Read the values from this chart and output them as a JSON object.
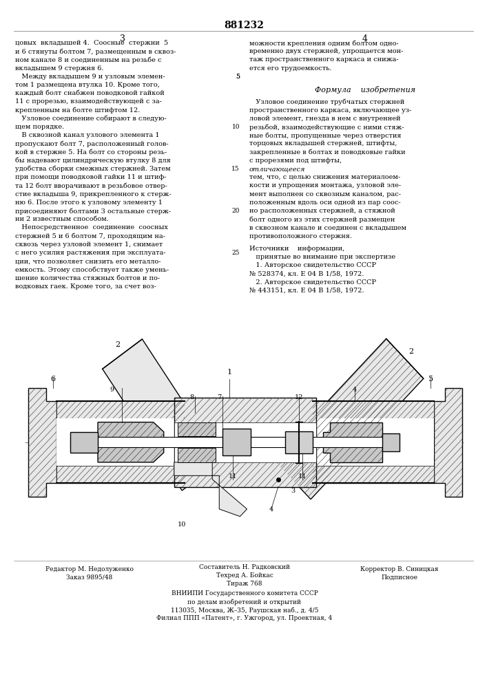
{
  "patent_number": "881232",
  "background_color": "#ffffff",
  "text_color": "#000000",
  "col1_header": "3",
  "col2_header": "4",
  "col1_lines": [
    "цовых  вкладышей 4.  Соосные  стержни  5",
    "и 6 стянуты болтом 7, размещенным в сквоз-",
    "ном канале 8 и соединенным на резьбе с",
    "вкладышем 9 стержня 6.",
    "   Между вкладышем 9 и узловым элемен-",
    "том 1 размещена втулка 10. Кроме того,",
    "каждый болт снабжен поводковой гайкой",
    "11 с прорезью, взаимодействующей с за-",
    "крепленным на болте штифтом 12.",
    "   Узловое соединение собирают в следую-",
    "щем порядке.",
    "   В сквозной канал узлового элемента 1",
    "пропускают болт 7, расположенный голов-",
    "кой в стержне 5. На болт со стороны резь-",
    "бы надевают цилиндрическую втулку 8 для",
    "удобства сборки смежных стержней. Затем",
    "при помощи поводковой гайки 11 и штиф-",
    "та 12 болт вворачивают в резьбовое отвер-",
    "стие вкладыша 9, прикрепленного к стерж-",
    "ню 6. После этого к узловому элементу 1",
    "присоединяют болтами 3 остальные стерж-",
    "ни 2 известным способом.",
    "   Непосредственное  соединение  соосных",
    "стержней 5 и 6 болтом 7, проходящим на-",
    "сквозь через узловой элемент 1, снимает",
    "с него усилия растяжения при эксплуата-",
    "ции, что позволяет снизить его металло-",
    "емкость. Этому способствует также умень-",
    "шение количества стяжных болтов и по-",
    "водковых гаек. Кроме того, за счет воз-"
  ],
  "col2_lines_normal": [
    "можности крепления одним болтом одно-",
    "временно двух стержней, упрощается мон-",
    "таж пространственного каркаса и снижа-",
    "ется его трудоемкость."
  ],
  "col2_formula_title": "Формула    изобретения",
  "col2_formula_lines": [
    "   Узловое соединение трубчатых стержней",
    "пространственного каркаса, включающее уз-",
    "ловой элемент, гнезда в нем с внутренней",
    "резьбой, взаимодействующие с ними стяж-",
    "ные болты, пропущенные через отверстия",
    "торцовых вкладышей стержней, штифты,",
    "закрепленные в болтах и поводковые гайки",
    "с прорезями под штифты, ",
    "отличающееся",
    "тем, что, с целью снижения материалоем-",
    "кости и упрощения монтажа, узловой эле-",
    "мент выполнен со сквозным каналом, рас-",
    "положенным вдоль оси одной из пар соос-",
    "но расположенных стержней, а стяжной",
    "болт одного из этих стержней размещен",
    "в сквозном канале и соединен с вкладышем",
    "противоположного стержня."
  ],
  "col2_sources_title": "Источники    информации,",
  "col2_sources_lines": [
    "   принятые во внимание при экспертизе",
    "   1. Авторское свидетельство СССР",
    "№ 528374, кл. Е 04 В 1/58, 1972.",
    "   2. Авторское свидетельство СССР",
    "№ 443151, кл. Е 04 В 1/58, 1972."
  ],
  "line_numbers_col2": [
    "5",
    "10",
    "15",
    "20",
    "25"
  ],
  "footer_editor": "Редактор М. Недолуженко",
  "footer_compiler": "Составитель Н. Радковский",
  "footer_corrector": "Корректор В. Синицкая",
  "footer_tech": "Техред А. Бойкас",
  "footer_signed": "Подписное",
  "footer_order": "Заказ 9895/48",
  "footer_circulation": "Тираж 768",
  "footer_org1": "ВНИИПИ Государственного комитета СССР",
  "footer_org2": "по делам изобретений и открытий",
  "footer_addr": "113035, Москва, Ж–35, Раушская наб., д. 4/5",
  "footer_branch": "Филиал ППП «Патент», г. Ужгород, ул. Проектная, 4"
}
